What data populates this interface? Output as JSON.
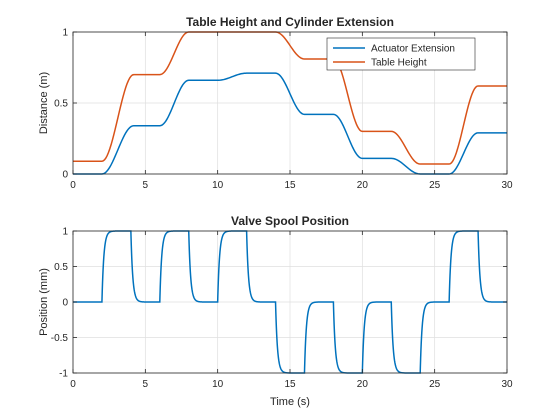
{
  "chart_data": [
    {
      "type": "line",
      "title": "Table Height and Cylinder Extension",
      "xlabel": "",
      "ylabel": "Distance (m)",
      "xlim": [
        0,
        30
      ],
      "ylim": [
        0,
        1
      ],
      "xticks": [
        0,
        5,
        10,
        15,
        20,
        25,
        30
      ],
      "yticks": [
        0,
        0.5,
        1
      ],
      "grid": true,
      "legend": "top-right",
      "series": [
        {
          "name": "Actuator Extension",
          "color": "#0072BD",
          "x": [
            0,
            2,
            4.2,
            6,
            8,
            10,
            12,
            14,
            16,
            18,
            20,
            22,
            24,
            26,
            28,
            30
          ],
          "y": [
            0,
            0,
            0.34,
            0.34,
            0.66,
            0.66,
            0.71,
            0.71,
            0.42,
            0.42,
            0.11,
            0.11,
            0,
            0,
            0.29,
            0.29
          ]
        },
        {
          "name": "Table Height",
          "color": "#D95319",
          "x": [
            0,
            2,
            4.2,
            6,
            8,
            10,
            12,
            14,
            16,
            18,
            20,
            22,
            24,
            26,
            28,
            30
          ],
          "y": [
            0.09,
            0.09,
            0.7,
            0.7,
            1.0,
            1.0,
            1.0,
            1.0,
            0.81,
            0.81,
            0.3,
            0.3,
            0.07,
            0.07,
            0.62,
            0.62
          ]
        }
      ]
    },
    {
      "type": "line",
      "title": "Valve Spool Position",
      "xlabel": "Time (s)",
      "ylabel": "Position (mm)",
      "xlim": [
        0,
        30
      ],
      "ylim": [
        -1,
        1
      ],
      "xticks": [
        0,
        5,
        10,
        15,
        20,
        25,
        30
      ],
      "yticks": [
        -1,
        -0.5,
        0,
        0.5,
        1
      ],
      "grid": true,
      "series": [
        {
          "name": "",
          "color": "#0072BD",
          "pulses": [
            {
              "start": 2,
              "end": 4,
              "level": 1
            },
            {
              "start": 6,
              "end": 8,
              "level": 1
            },
            {
              "start": 10,
              "end": 12,
              "level": 1
            },
            {
              "start": 14,
              "end": 16,
              "level": -1
            },
            {
              "start": 18,
              "end": 20,
              "level": -1
            },
            {
              "start": 22,
              "end": 24,
              "level": -1
            },
            {
              "start": 26,
              "end": 28,
              "level": 1
            }
          ]
        }
      ]
    }
  ]
}
